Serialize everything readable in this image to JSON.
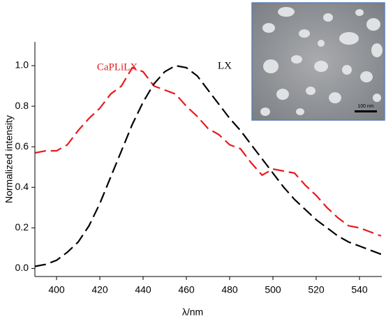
{
  "chart_data": {
    "type": "line",
    "x_label": "λ/nm",
    "y_label": "Normalized intensity",
    "xlim": [
      390,
      550
    ],
    "ylim": [
      -0.04,
      1.1
    ],
    "xticks": [
      400,
      420,
      440,
      460,
      480,
      500,
      520,
      540
    ],
    "yticks": [
      {
        "value": 0,
        "label": "0.0"
      },
      0.2,
      0.4,
      0.6,
      0.8,
      {
        "value": 1,
        "label": "1.0"
      }
    ],
    "x": [
      390,
      395,
      400,
      405,
      410,
      415,
      420,
      425,
      430,
      435,
      440,
      445,
      450,
      455,
      460,
      465,
      470,
      475,
      480,
      485,
      490,
      495,
      500,
      505,
      510,
      515,
      520,
      525,
      530,
      535,
      540,
      545,
      550
    ],
    "series": [
      {
        "name": "CaPLiLX",
        "color": "#e8191c",
        "values": [
          0.57,
          0.58,
          0.58,
          0.61,
          0.68,
          0.74,
          0.79,
          0.86,
          0.9,
          0.99,
          0.97,
          0.9,
          0.88,
          0.86,
          0.8,
          0.75,
          0.69,
          0.66,
          0.61,
          0.59,
          0.52,
          0.46,
          0.49,
          0.48,
          0.47,
          0.41,
          0.36,
          0.3,
          0.25,
          0.21,
          0.2,
          0.18,
          0.16
        ]
      },
      {
        "name": "LX",
        "color": "#000000",
        "values": [
          0.01,
          0.02,
          0.04,
          0.08,
          0.13,
          0.21,
          0.32,
          0.45,
          0.58,
          0.71,
          0.82,
          0.91,
          0.97,
          1.0,
          0.99,
          0.95,
          0.88,
          0.81,
          0.74,
          0.68,
          0.61,
          0.54,
          0.47,
          0.4,
          0.34,
          0.29,
          0.24,
          0.2,
          0.16,
          0.13,
          0.11,
          0.09,
          0.07
        ]
      }
    ],
    "inset_label": "100 nm"
  }
}
